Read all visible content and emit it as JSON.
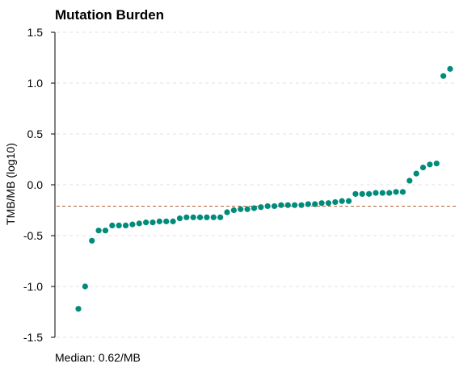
{
  "chart_data": {
    "type": "scatter",
    "title": "Mutation Burden",
    "xlabel": "",
    "ylabel": "TMB/MB (log10)",
    "ylim": [
      -1.5,
      1.5
    ],
    "yticks": [
      1.5,
      1.0,
      0.5,
      0.0,
      -0.5,
      -1.0,
      -1.5
    ],
    "ytick_labels": [
      "1.5",
      "1.0",
      "0.5",
      "0.0",
      "-0.5",
      "-1.0",
      "-1.5"
    ],
    "grid": "horizontal dashed",
    "median_line": -0.21,
    "caption": "Median: 0.62/MB",
    "point_color": "#008B7A",
    "median_line_color": "#B5613A",
    "grid_color": "#E0E0E0",
    "x": [
      1,
      2,
      3,
      4,
      5,
      6,
      7,
      8,
      9,
      10,
      11,
      12,
      13,
      14,
      15,
      16,
      17,
      18,
      19,
      20,
      21,
      22,
      23,
      24,
      25,
      26,
      27,
      28,
      29,
      30,
      31,
      32,
      33,
      34,
      35,
      36,
      37,
      38,
      39,
      40,
      41,
      42,
      43,
      44,
      45,
      46,
      47,
      48,
      49,
      50,
      51,
      52,
      53,
      54,
      55,
      56
    ],
    "y": [
      -1.22,
      -1.0,
      -0.55,
      -0.45,
      -0.45,
      -0.4,
      -0.4,
      -0.4,
      -0.39,
      -0.38,
      -0.37,
      -0.37,
      -0.36,
      -0.36,
      -0.36,
      -0.33,
      -0.32,
      -0.32,
      -0.32,
      -0.32,
      -0.32,
      -0.32,
      -0.27,
      -0.25,
      -0.24,
      -0.24,
      -0.23,
      -0.22,
      -0.21,
      -0.21,
      -0.2,
      -0.2,
      -0.2,
      -0.2,
      -0.19,
      -0.19,
      -0.18,
      -0.18,
      -0.17,
      -0.16,
      -0.16,
      -0.09,
      -0.09,
      -0.09,
      -0.08,
      -0.08,
      -0.08,
      -0.07,
      -0.07,
      0.04,
      0.11,
      0.17,
      0.2,
      0.21,
      1.07,
      1.14
    ]
  }
}
